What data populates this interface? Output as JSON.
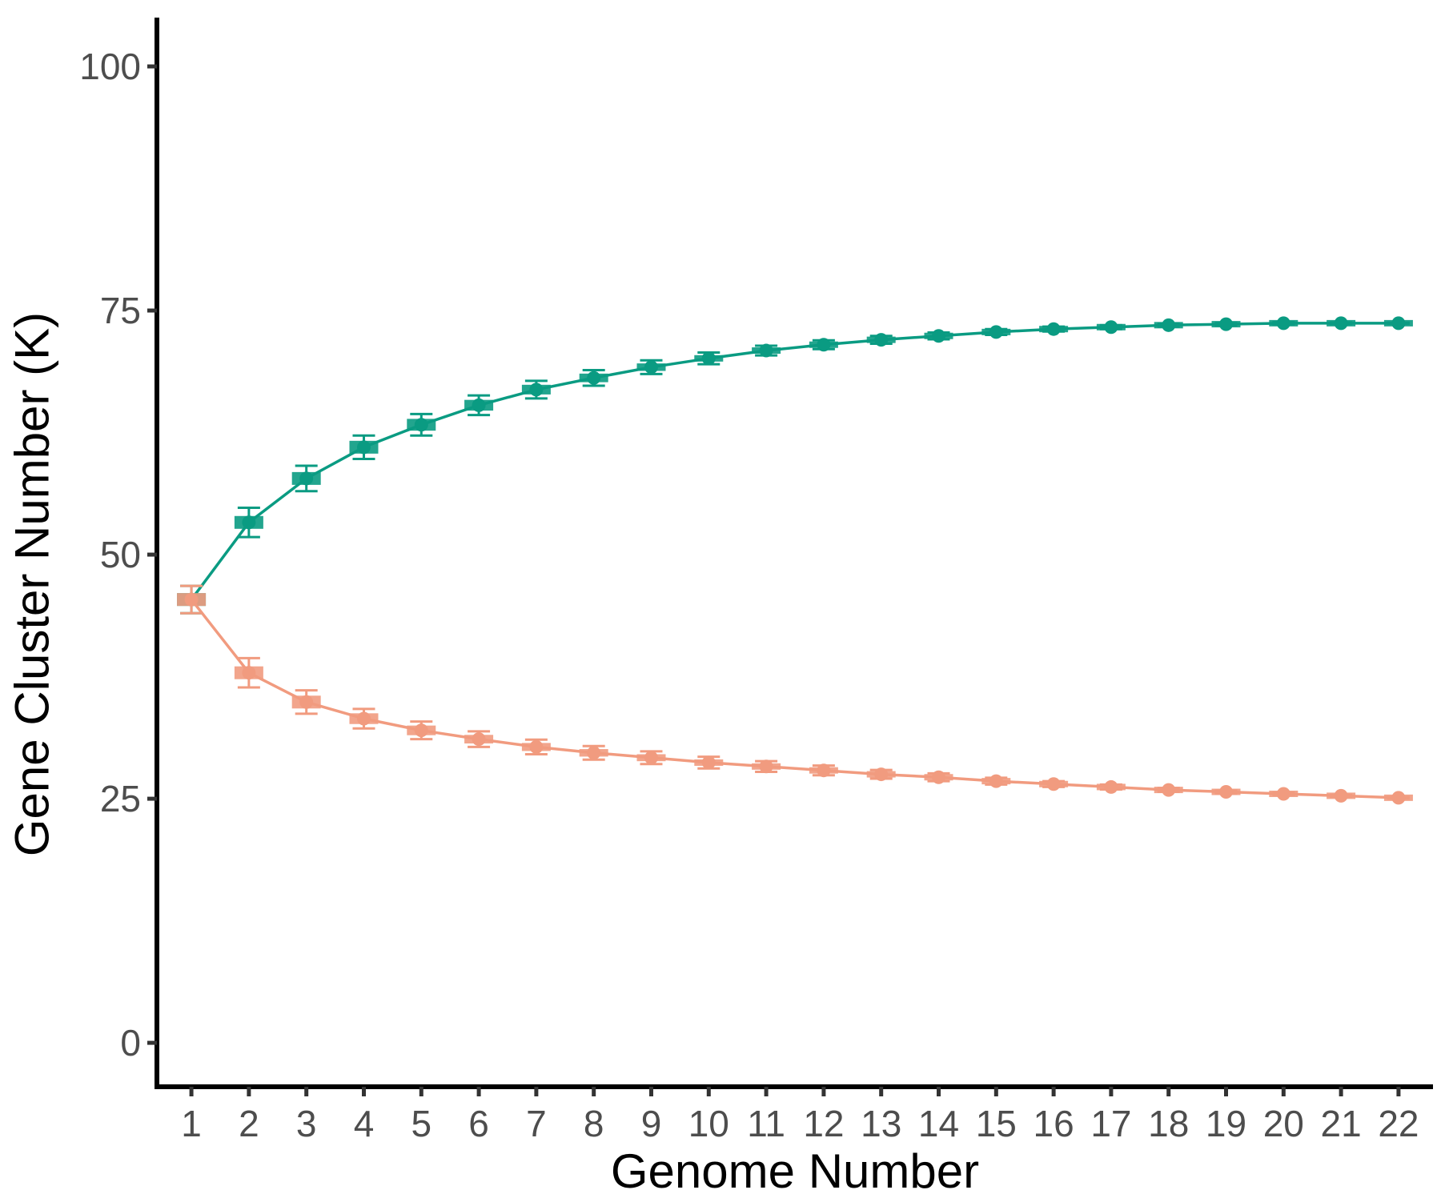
{
  "chart_data": {
    "type": "line",
    "title": "",
    "xlabel": "Genome Number",
    "ylabel": "Gene Cluster Number (K)",
    "x": [
      1,
      2,
      3,
      4,
      5,
      6,
      7,
      8,
      9,
      10,
      11,
      12,
      13,
      14,
      15,
      16,
      17,
      18,
      19,
      20,
      21,
      22
    ],
    "xlim": [
      0.4,
      22.6
    ],
    "ylim": [
      -4.5,
      105
    ],
    "yticks": [
      0,
      25,
      50,
      75,
      100
    ],
    "xticks": [
      "1",
      "2",
      "3",
      "4",
      "5",
      "6",
      "7",
      "8",
      "9",
      "10",
      "11",
      "12",
      "13",
      "14",
      "15",
      "16",
      "17",
      "18",
      "19",
      "20",
      "21",
      "22"
    ],
    "grid": false,
    "legend": "none",
    "series": [
      {
        "color": "#0a9b82",
        "values": [
          45.4,
          53.3,
          57.8,
          61.0,
          63.3,
          65.3,
          66.9,
          68.1,
          69.2,
          70.1,
          70.9,
          71.5,
          72.0,
          72.4,
          72.8,
          73.1,
          73.3,
          73.5,
          73.6,
          73.7,
          73.7,
          73.7
        ],
        "errors": [
          1.4,
          1.5,
          1.3,
          1.2,
          1.1,
          1.0,
          0.9,
          0.8,
          0.7,
          0.6,
          0.5,
          0.45,
          0.4,
          0.35,
          0.3,
          0.25,
          0.2,
          0.15,
          0.12,
          0.1,
          0.08,
          0.05
        ]
      },
      {
        "color": "#f19b7f",
        "values": [
          45.4,
          37.9,
          34.9,
          33.2,
          32.0,
          31.1,
          30.3,
          29.7,
          29.2,
          28.7,
          28.3,
          27.9,
          27.5,
          27.2,
          26.8,
          26.5,
          26.2,
          25.9,
          25.7,
          25.5,
          25.3,
          25.1
        ],
        "errors": [
          1.4,
          1.5,
          1.2,
          1.0,
          0.9,
          0.8,
          0.75,
          0.7,
          0.65,
          0.6,
          0.55,
          0.5,
          0.45,
          0.4,
          0.35,
          0.3,
          0.25,
          0.2,
          0.15,
          0.12,
          0.1,
          0.08
        ]
      }
    ]
  }
}
